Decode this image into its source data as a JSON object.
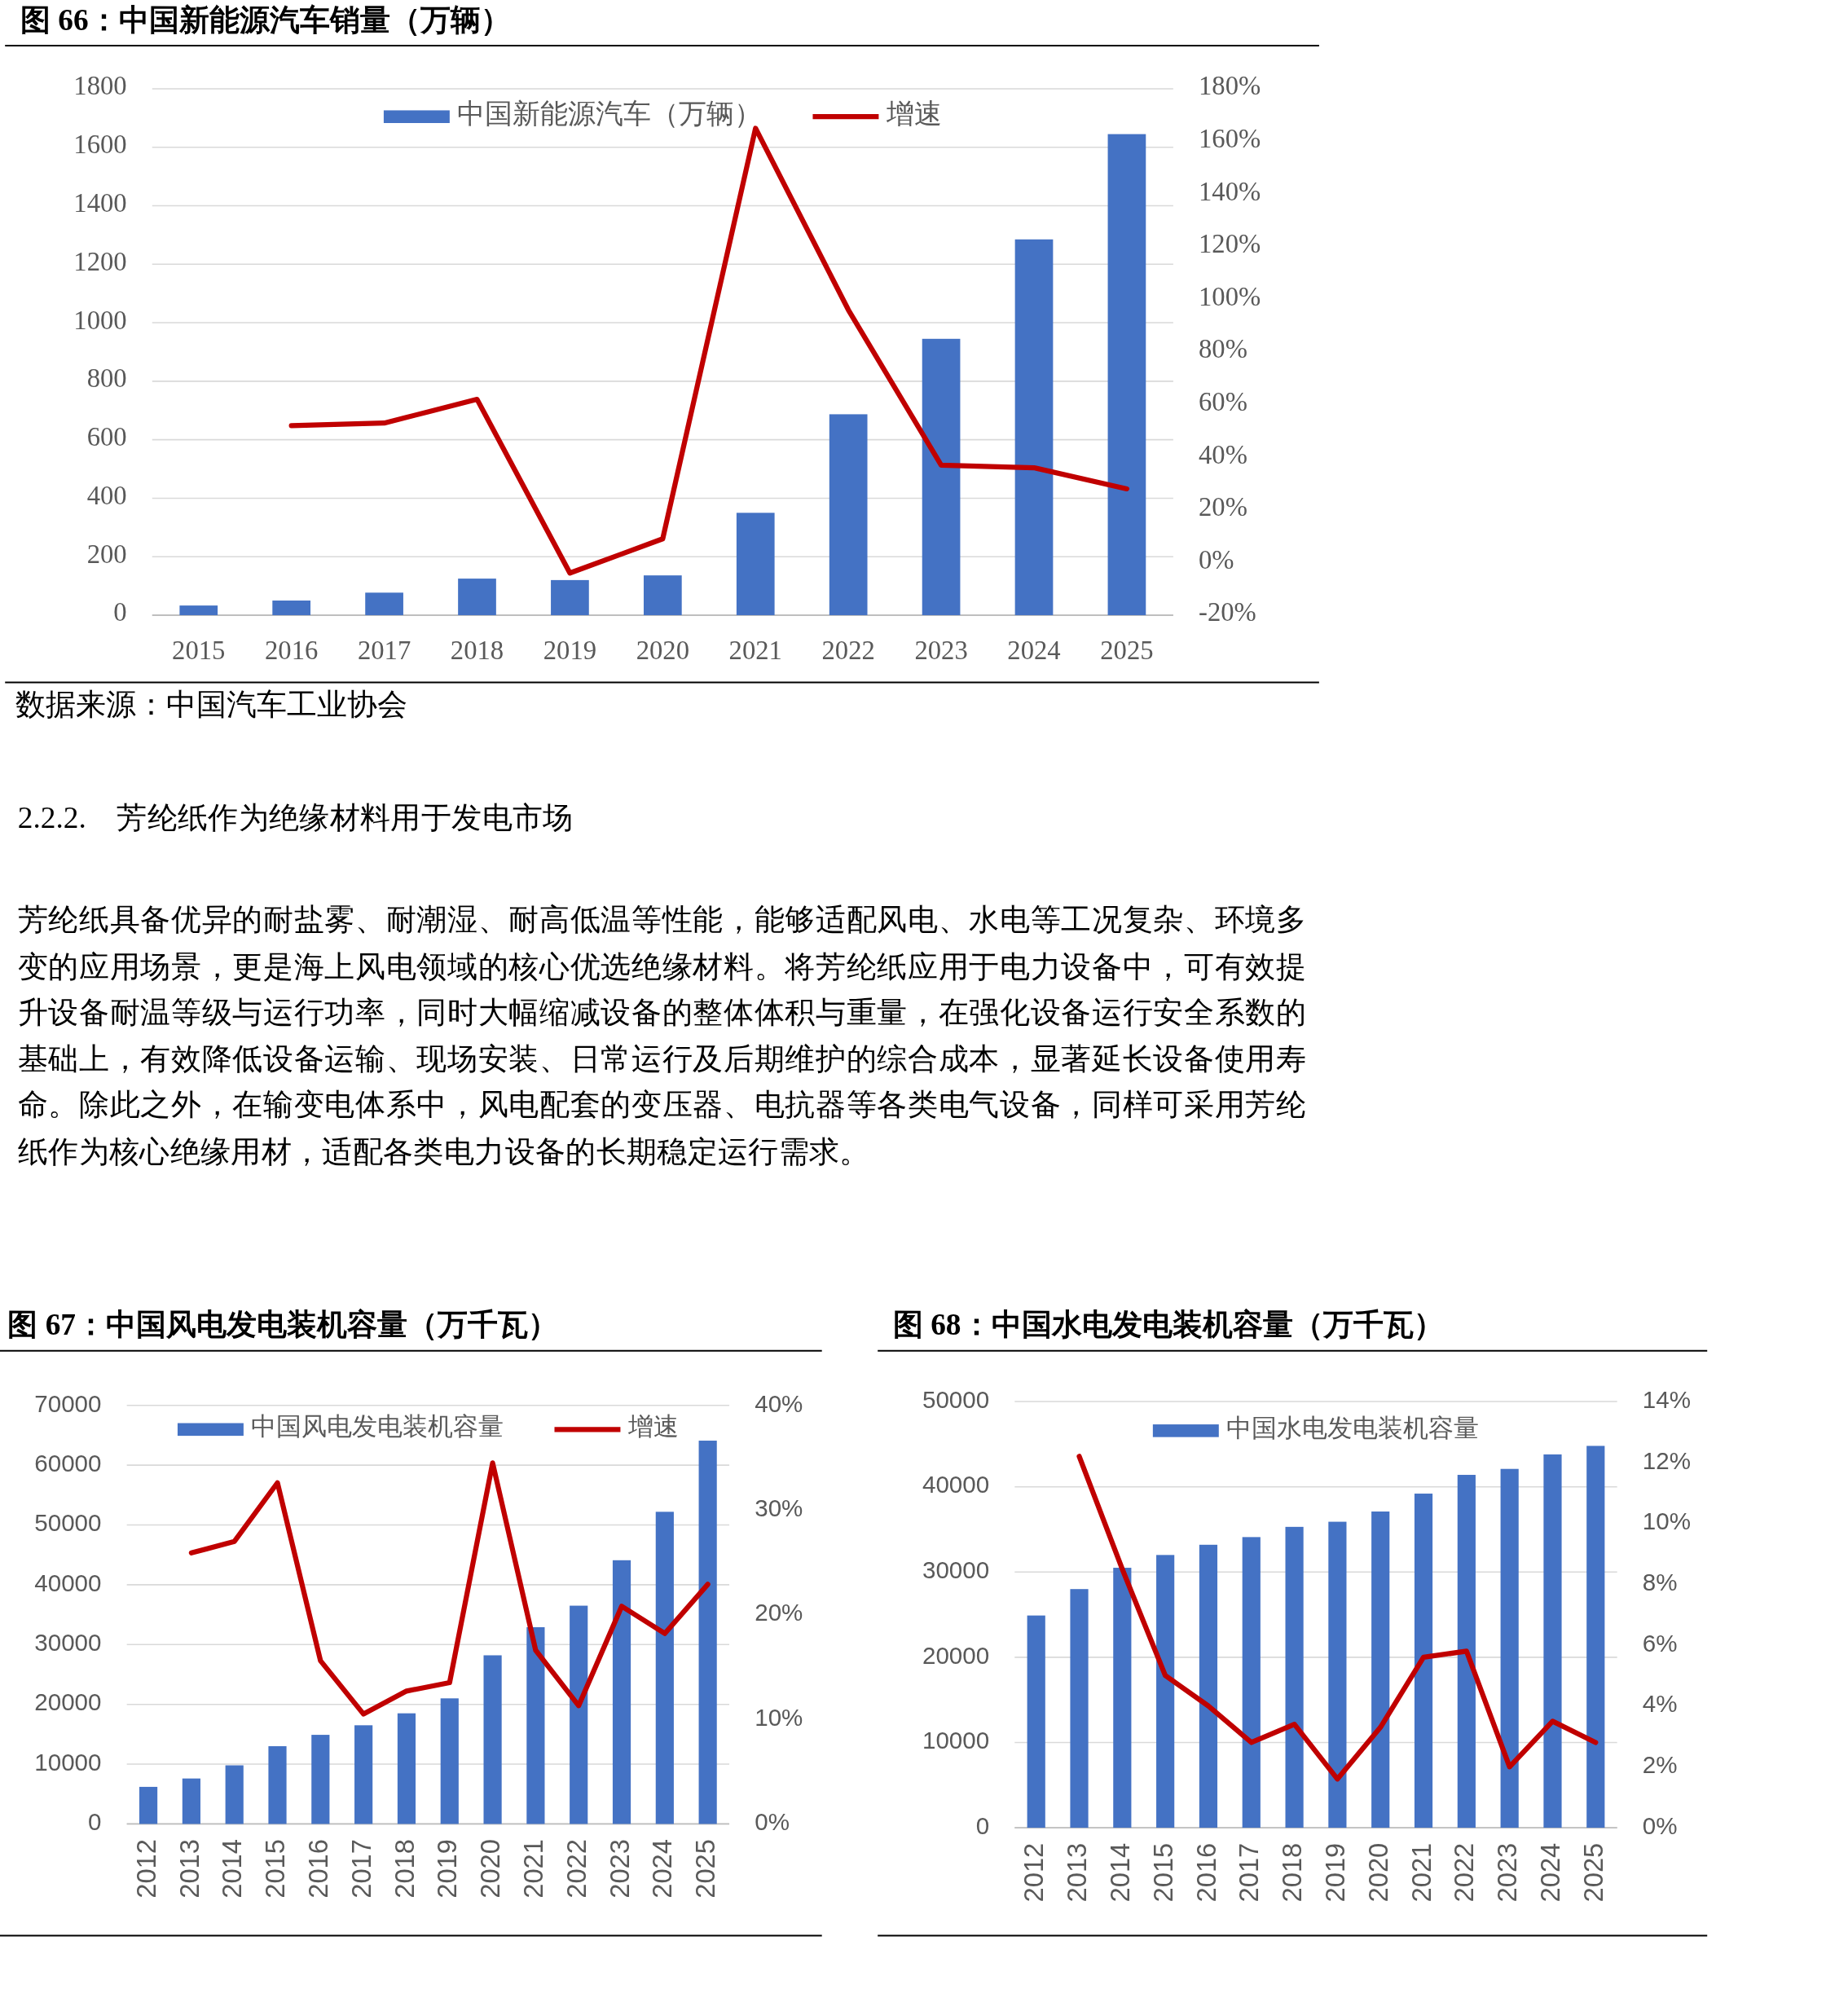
{
  "chart_data": [
    {
      "type": "bar",
      "title": "图 66：中国新能源汽车销量（万辆）",
      "categories": [
        "2015",
        "2016",
        "2017",
        "2018",
        "2019",
        "2020",
        "2021",
        "2022",
        "2023",
        "2024",
        "2025"
      ],
      "series": [
        {
          "name": "中国新能源汽车（万辆）",
          "color": "#4472c4",
          "values": [
            33,
            50,
            77,
            125,
            120,
            136,
            350,
            687,
            945,
            1285,
            1645
          ]
        },
        {
          "name": "增速",
          "type": "line",
          "axis": "y2",
          "color": "#c00000",
          "values": [
            null,
            52,
            53,
            62,
            -4,
            9,
            165,
            96,
            37,
            36,
            28
          ]
        }
      ],
      "ylim": [
        0,
        1800
      ],
      "yticks": [
        0,
        200,
        400,
        600,
        800,
        1000,
        1200,
        1400,
        1600,
        1800
      ],
      "y2lim": [
        -20,
        180
      ],
      "y2ticks": [
        {
          "value": -20,
          "label": "-20%"
        },
        {
          "value": 0,
          "label": "0%"
        },
        {
          "value": 20,
          "label": "20%"
        },
        {
          "value": 40,
          "label": "40%"
        },
        {
          "value": 60,
          "label": "60%"
        },
        {
          "value": 80,
          "label": "80%"
        },
        {
          "value": 100,
          "label": "100%"
        },
        {
          "value": 120,
          "label": "120%"
        },
        {
          "value": 140,
          "label": "140%"
        },
        {
          "value": 160,
          "label": "160%"
        },
        {
          "value": 180,
          "label": "180%"
        }
      ],
      "grid": "y",
      "legend": "top",
      "annotations": [
        "数据来源：中国汽车工业协会"
      ]
    },
    {
      "type": "other",
      "title": "2.2.2.    芳纶纸作为绝缘材料用于发电市场",
      "annotations": [
        "芳纶纸具备优异的耐盐雾、耐潮湿、耐高低温等性能，能够适配风电、水电等工况复杂、环境多变的应用场景，更是海上风电领域的核心优选绝缘材料。将芳纶纸应用于电力设备中，可有效提升设备耐温等级与运行功率，同时大幅缩减设备的整体体积与重量，在强化设备运行安全系数的基础上，有效降低设备运输、现场安装、日常运行及后期维护的综合成本，显著延长设备使用寿命。除此之外，在输变电体系中，风电配套的变压器、电抗器等各类电气设备，同样可采用芳纶纸作为核心绝缘用材，适配各类电力设备的长期稳定运行需求。"
      ]
    },
    {
      "type": "bar",
      "title": "图 67：中国风电发电装机容量（万千瓦）",
      "categories": [
        "2012",
        "2013",
        "2014",
        "2015",
        "2016",
        "2017",
        "2018",
        "2019",
        "2020",
        "2021",
        "2022",
        "2023",
        "2024",
        "2025"
      ],
      "series": [
        {
          "name": "中国风电发电装机容量",
          "color": "#4472c4",
          "values": [
            6200,
            7600,
            9800,
            13000,
            14900,
            16500,
            18500,
            21000,
            28200,
            32900,
            36500,
            44100,
            52200,
            64100
          ]
        },
        {
          "name": "增速",
          "type": "line",
          "axis": "y2",
          "color": "#c00000",
          "values": [
            null,
            25.9,
            27.0,
            32.6,
            15.6,
            10.5,
            12.7,
            13.5,
            34.5,
            16.6,
            11.3,
            20.8,
            18.2,
            22.9
          ]
        }
      ],
      "ylim": [
        0,
        70000
      ],
      "yticks": [
        0,
        10000,
        20000,
        30000,
        40000,
        50000,
        60000,
        70000
      ],
      "y2lim": [
        0,
        40
      ],
      "y2ticks": [
        {
          "value": 0,
          "label": "0%"
        },
        {
          "value": 10,
          "label": "10%"
        },
        {
          "value": 20,
          "label": "20%"
        },
        {
          "value": 30,
          "label": "30%"
        },
        {
          "value": 40,
          "label": "40%"
        }
      ],
      "grid": "y",
      "legend": "top"
    },
    {
      "type": "bar",
      "title": "图 68：中国水电发电装机容量（万千瓦）",
      "categories": [
        "2012",
        "2013",
        "2014",
        "2015",
        "2016",
        "2017",
        "2018",
        "2019",
        "2020",
        "2021",
        "2022",
        "2023",
        "2024",
        "2025"
      ],
      "series": [
        {
          "name": "中国水电发电装机容量",
          "color": "#4472c4",
          "values": [
            24900,
            28000,
            30500,
            32000,
            33200,
            34100,
            35300,
            35900,
            37100,
            39200,
            41400,
            42100,
            43800,
            44800
          ]
        },
        {
          "type": "line",
          "axis": "y2",
          "color": "#c00000",
          "values": [
            null,
            12.2,
            8.5,
            5.0,
            4.0,
            2.8,
            3.4,
            1.6,
            3.3,
            5.6,
            5.8,
            2.0,
            3.5,
            2.8
          ]
        }
      ],
      "ylim": [
        0,
        50000
      ],
      "yticks": [
        0,
        10000,
        20000,
        30000,
        40000,
        50000
      ],
      "y2lim": [
        0,
        14
      ],
      "y2ticks": [
        {
          "value": 0,
          "label": "0%"
        },
        {
          "value": 2,
          "label": "2%"
        },
        {
          "value": 4,
          "label": "4%"
        },
        {
          "value": 6,
          "label": "6%"
        },
        {
          "value": 8,
          "label": "8%"
        },
        {
          "value": 10,
          "label": "10%"
        },
        {
          "value": 12,
          "label": "12%"
        },
        {
          "value": 14,
          "label": "14%"
        }
      ],
      "grid": "y",
      "legend": "top"
    }
  ]
}
